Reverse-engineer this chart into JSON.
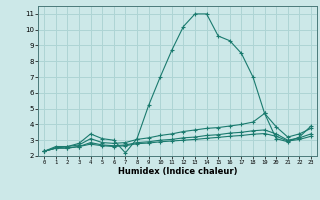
{
  "xlabel": "Humidex (Indice chaleur)",
  "bg_color": "#cce8e8",
  "grid_color": "#aed4d4",
  "line_color": "#1a7a6e",
  "xlim": [
    -0.5,
    23.5
  ],
  "ylim": [
    2,
    11.5
  ],
  "xticks": [
    0,
    1,
    2,
    3,
    4,
    5,
    6,
    7,
    8,
    9,
    10,
    11,
    12,
    13,
    14,
    15,
    16,
    17,
    18,
    19,
    20,
    21,
    22,
    23
  ],
  "yticks": [
    2,
    3,
    4,
    5,
    6,
    7,
    8,
    9,
    10,
    11
  ],
  "line1_x": [
    0,
    1,
    2,
    3,
    4,
    5,
    6,
    7,
    8,
    9,
    10,
    11,
    12,
    13,
    14,
    15,
    16,
    17,
    18,
    19,
    20,
    21,
    22,
    23
  ],
  "line1_y": [
    2.3,
    2.6,
    2.6,
    2.8,
    3.4,
    3.1,
    3.0,
    2.2,
    3.1,
    5.2,
    7.0,
    8.7,
    10.2,
    11.0,
    11.0,
    9.6,
    9.3,
    8.5,
    7.0,
    4.7,
    3.1,
    2.9,
    3.2,
    3.9
  ],
  "line2_x": [
    0,
    1,
    2,
    3,
    4,
    5,
    6,
    7,
    8,
    9,
    10,
    11,
    12,
    13,
    14,
    15,
    16,
    17,
    18,
    19,
    20,
    21,
    22,
    23
  ],
  "line2_y": [
    2.3,
    2.5,
    2.6,
    2.7,
    3.1,
    2.85,
    2.8,
    2.85,
    3.05,
    3.15,
    3.3,
    3.4,
    3.55,
    3.65,
    3.75,
    3.8,
    3.9,
    4.0,
    4.15,
    4.7,
    3.85,
    3.2,
    3.4,
    3.75
  ],
  "line3_x": [
    0,
    1,
    2,
    3,
    4,
    5,
    6,
    7,
    8,
    9,
    10,
    11,
    12,
    13,
    14,
    15,
    16,
    17,
    18,
    19,
    20,
    21,
    22,
    23
  ],
  "line3_y": [
    2.3,
    2.5,
    2.5,
    2.6,
    2.85,
    2.7,
    2.65,
    2.7,
    2.85,
    2.9,
    3.0,
    3.05,
    3.15,
    3.2,
    3.3,
    3.35,
    3.45,
    3.5,
    3.6,
    3.65,
    3.4,
    3.0,
    3.15,
    3.4
  ],
  "line4_x": [
    0,
    1,
    2,
    3,
    4,
    5,
    6,
    7,
    8,
    9,
    10,
    11,
    12,
    13,
    14,
    15,
    16,
    17,
    18,
    19,
    20,
    21,
    22,
    23
  ],
  "line4_y": [
    2.3,
    2.5,
    2.5,
    2.6,
    2.75,
    2.65,
    2.6,
    2.65,
    2.78,
    2.82,
    2.9,
    2.95,
    3.0,
    3.05,
    3.12,
    3.18,
    3.25,
    3.3,
    3.38,
    3.42,
    3.25,
    2.95,
    3.05,
    3.25
  ]
}
